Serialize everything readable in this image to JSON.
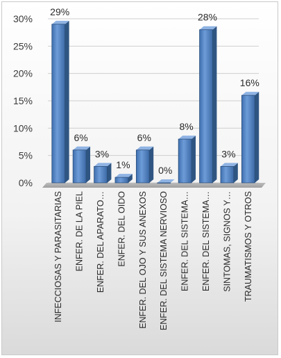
{
  "chart_data": {
    "type": "bar",
    "title": "",
    "xlabel": "",
    "ylabel": "",
    "ylim": [
      0,
      0.3
    ],
    "y_ticks": [
      "0%",
      "5%",
      "10%",
      "15%",
      "20%",
      "25%",
      "30%"
    ],
    "gridlines": true,
    "legend": "none",
    "bar_color": "#4f81bd",
    "categories": [
      "INFECCIOSAS Y PARASITARIAS",
      "ENFER. DE LA PIEL",
      "ENFER. DEL APARATO…",
      "ENFER. DEL OIDO",
      "ENFER. DEL OJO Y SUS ANEXOS",
      "ENFER. DEL SISTEMA NERVIOSO",
      "ENFER. DEL SISTEMA…",
      "ENFER. DEL SISTEMA…",
      "SINTOMAS, SIGNOS Y…",
      "TRAUMATISMOS  Y OTROS"
    ],
    "values": [
      0.29,
      0.06,
      0.03,
      0.01,
      0.06,
      0.0,
      0.08,
      0.28,
      0.03,
      0.16
    ],
    "data_labels": [
      "29%",
      "6%",
      "3%",
      "1%",
      "6%",
      "0%",
      "8%",
      "28%",
      "3%",
      "16%"
    ]
  }
}
